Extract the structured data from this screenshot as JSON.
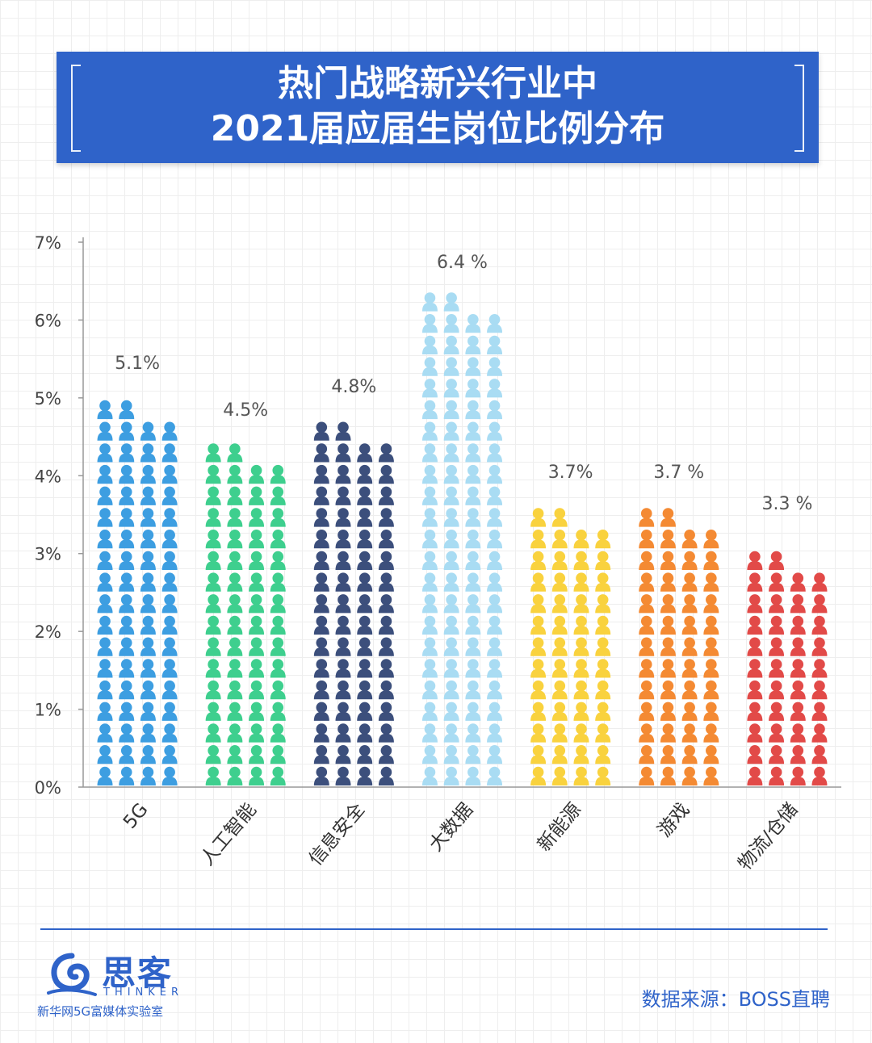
{
  "title": {
    "line1": "热门战略新兴行业中",
    "line2": "2021届应届生岗位比例分布"
  },
  "chart_data": {
    "type": "bar",
    "categories": [
      "5G",
      "人工智能",
      "信息安全",
      "大数据",
      "新能源",
      "游戏",
      "物流/仓储"
    ],
    "values": [
      5.1,
      4.5,
      4.8,
      6.4,
      3.7,
      3.7,
      3.3
    ],
    "value_labels": [
      "5.1%",
      "4.5%",
      "4.8%",
      "6.4 %",
      "3.7%",
      "3.7 %",
      "3.3 %"
    ],
    "colors": [
      "#3d9ee1",
      "#3ecf8e",
      "#3c4f7c",
      "#a9dcf3",
      "#f9d23e",
      "#f48a33",
      "#e24a48"
    ],
    "ylim": [
      0,
      7
    ],
    "yticks": [
      "0%",
      "1%",
      "2%",
      "3%",
      "4%",
      "5%",
      "6%",
      "7%"
    ],
    "grid": false,
    "legend": "none",
    "marker": "person-icon"
  },
  "footer": {
    "logo_name": "思客",
    "logo_sub": "THINKER",
    "logo_org": "新华网5G富媒体实验室",
    "source": "数据来源：BOSS直聘"
  }
}
